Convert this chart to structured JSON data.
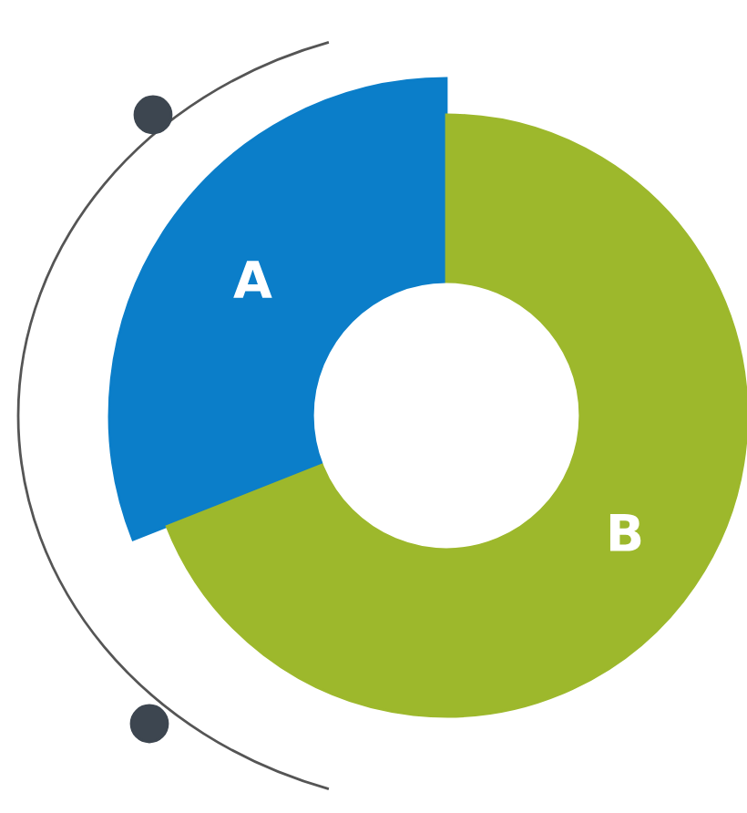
{
  "chart_data": {
    "type": "donut",
    "categories": [
      "A",
      "B"
    ],
    "values": [
      31,
      69
    ],
    "colors": [
      "#0b7ec9",
      "#9db82c"
    ]
  }
}
